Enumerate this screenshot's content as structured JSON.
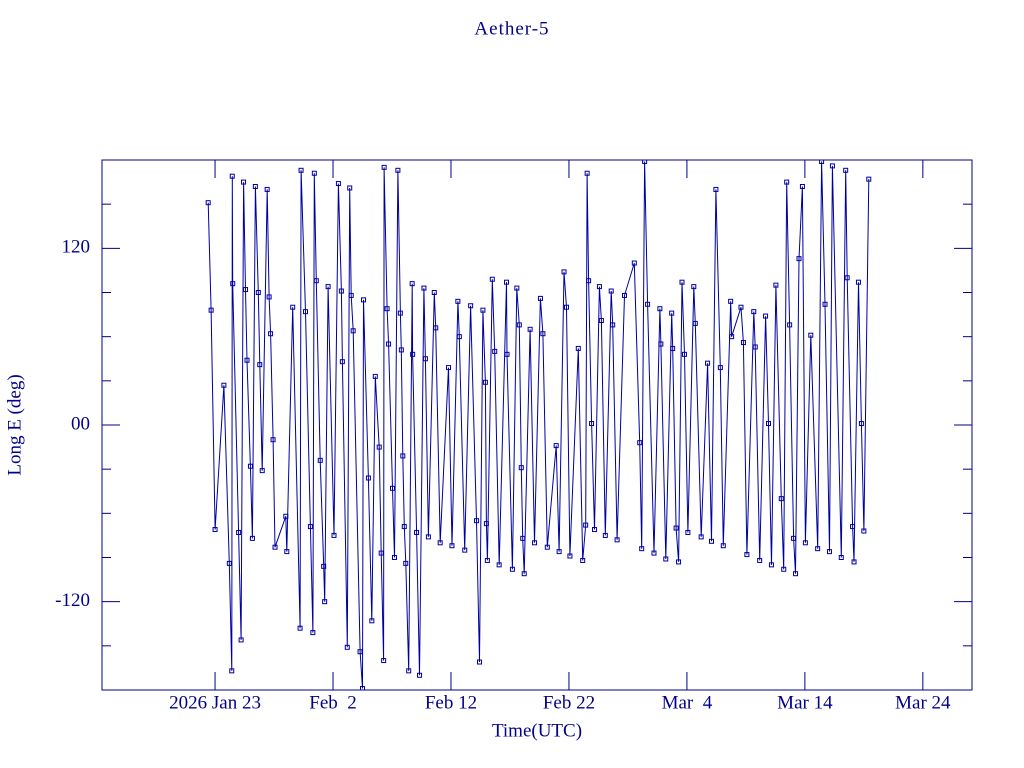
{
  "chart_data": {
    "type": "line",
    "title": "Aether-5",
    "xlabel": "Time(UTC)",
    "ylabel": "Long E (deg)",
    "color": "#0000a0",
    "markers": true,
    "grid": false,
    "xlim": [
      "2026-01-13T10:00",
      "2026-03-28T04:00"
    ],
    "xticks": [
      {
        "value": "2026-01-23T00:00",
        "label": "2026 Jan 23"
      },
      {
        "value": "2026-02-02T00:00",
        "label": "Feb  2"
      },
      {
        "value": "2026-02-12T00:00",
        "label": "Feb 12"
      },
      {
        "value": "2026-02-22T00:00",
        "label": "Feb 22"
      },
      {
        "value": "2026-03-04T00:00",
        "label": "Mar  4"
      },
      {
        "value": "2026-03-14T00:00",
        "label": "Mar 14"
      },
      {
        "value": "2026-03-24T00:00",
        "label": "Mar 24"
      }
    ],
    "ylim": [
      -180,
      180
    ],
    "yticks": [
      -120,
      {
        "value": 0,
        "label": "00"
      },
      120
    ],
    "yminorticks": [
      -150,
      -90,
      -60,
      -30,
      30,
      60,
      90,
      150
    ],
    "x": [
      "2026-01-22T10:00",
      "2026-01-22T16:00",
      "2026-01-23T00:00",
      "2026-01-23T18:00",
      "2026-01-24T05:00",
      "2026-01-24T10:00",
      "2026-01-24T11:00",
      "2026-01-24T12:00",
      "2026-01-25T00:00",
      "2026-01-25T05:00",
      "2026-01-25T10:00",
      "2026-01-25T14:00",
      "2026-01-25T17:00",
      "2026-01-26T00:00",
      "2026-01-26T04:00",
      "2026-01-26T10:00",
      "2026-01-26T16:00",
      "2026-01-26T19:00",
      "2026-01-27T00:00",
      "2026-01-27T10:00",
      "2026-01-27T14:00",
      "2026-01-27T17:00",
      "2026-01-27T22:00",
      "2026-01-28T02:00",
      "2026-01-29T00:00",
      "2026-01-29T02:00",
      "2026-01-29T14:00",
      "2026-01-30T05:00",
      "2026-01-30T07:00",
      "2026-01-30T16:00",
      "2026-01-31T02:00",
      "2026-01-31T07:00",
      "2026-01-31T10:00",
      "2026-01-31T14:00",
      "2026-01-31T22:00",
      "2026-02-01T05:00",
      "2026-02-01T07:00",
      "2026-02-01T14:00",
      "2026-02-02T02:00",
      "2026-02-02T11:00",
      "2026-02-02T17:00",
      "2026-02-02T19:00",
      "2026-02-03T05:00",
      "2026-02-03T10:00",
      "2026-02-03T13:00",
      "2026-02-03T17:00",
      "2026-02-04T07:00",
      "2026-02-04T12:00",
      "2026-02-04T14:00",
      "2026-02-05T00:00",
      "2026-02-05T07:00",
      "2026-02-05T14:00",
      "2026-02-05T22:00",
      "2026-02-06T02:00",
      "2026-02-06T07:00",
      "2026-02-06T08:00",
      "2026-02-06T14:00",
      "2026-02-06T17:00",
      "2026-02-07T01:00",
      "2026-02-07T05:00",
      "2026-02-07T12:00",
      "2026-02-07T17:00",
      "2026-02-07T19:00",
      "2026-02-07T22:00",
      "2026-02-08T01:00",
      "2026-02-08T04:00",
      "2026-02-08T10:00",
      "2026-02-08T17:00",
      "2026-02-08T18:00",
      "2026-02-09T02:00",
      "2026-02-09T08:00",
      "2026-02-09T17:00",
      "2026-02-09T20:00",
      "2026-02-10T02:00",
      "2026-02-10T14:00",
      "2026-02-10T17:00",
      "2026-02-11T02:00",
      "2026-02-11T19:00",
      "2026-02-12T02:00",
      "2026-02-12T14:00",
      "2026-02-12T17:00",
      "2026-02-13T04:00",
      "2026-02-13T16:00",
      "2026-02-14T04:00",
      "2026-02-14T10:00",
      "2026-02-14T17:00",
      "2026-02-14T22:00",
      "2026-02-15T00:00",
      "2026-02-15T02:00",
      "2026-02-15T12:00",
      "2026-02-15T17:00",
      "2026-02-16T02:00",
      "2026-02-16T17:00",
      "2026-02-16T18:00",
      "2026-02-17T05:00",
      "2026-02-17T14:00",
      "2026-02-17T19:00",
      "2026-02-17T23:00",
      "2026-02-18T02:00",
      "2026-02-18T05:00",
      "2026-02-18T17:00",
      "2026-02-19T02:00",
      "2026-02-19T14:00",
      "2026-02-19T19:00",
      "2026-02-20T04:00",
      "2026-02-20T22:00",
      "2026-02-21T04:00",
      "2026-02-21T14:00",
      "2026-02-21T19:00",
      "2026-02-22T02:00",
      "2026-02-22T19:00",
      "2026-02-23T04:00",
      "2026-02-23T10:00",
      "2026-02-23T13:00",
      "2026-02-23T16:00",
      "2026-02-23T22:00",
      "2026-02-24T04:00",
      "2026-02-24T14:00",
      "2026-02-24T18:00",
      "2026-02-25T02:00",
      "2026-02-25T14:00",
      "2026-02-25T17:00",
      "2026-02-26T02:00",
      "2026-02-26T17:00",
      "2026-02-27T13:00",
      "2026-02-28T00:00",
      "2026-02-28T04:00",
      "2026-02-28T10:00",
      "2026-02-28T16:00",
      "2026-03-01T05:00",
      "2026-03-01T17:00",
      "2026-03-01T19:00",
      "2026-03-02T05:00",
      "2026-03-02T17:00",
      "2026-03-02T19:00",
      "2026-03-03T02:00",
      "2026-03-03T07:00",
      "2026-03-03T14:00",
      "2026-03-03T19:00",
      "2026-03-04T02:00",
      "2026-03-04T14:00",
      "2026-03-04T17:00",
      "2026-03-05T05:00",
      "2026-03-05T18:00",
      "2026-03-06T02:00",
      "2026-03-06T11:00",
      "2026-03-06T20:00",
      "2026-03-07T02:00",
      "2026-03-07T17:00",
      "2026-03-07T19:00",
      "2026-03-08T14:00",
      "2026-03-08T19:00",
      "2026-03-09T02:00",
      "2026-03-09T16:00",
      "2026-03-09T19:00",
      "2026-03-10T04:00",
      "2026-03-10T16:00",
      "2026-03-10T22:00",
      "2026-03-11T04:00",
      "2026-03-11T13:00",
      "2026-03-12T00:00",
      "2026-03-12T05:00",
      "2026-03-12T11:00",
      "2026-03-12T17:00",
      "2026-03-13T01:00",
      "2026-03-13T05:00",
      "2026-03-13T12:00",
      "2026-03-13T19:00",
      "2026-03-14T01:00",
      "2026-03-14T12:00",
      "2026-03-15T02:00",
      "2026-03-15T10:00",
      "2026-03-15T17:00",
      "2026-03-16T02:00",
      "2026-03-16T08:00",
      "2026-03-17T02:00",
      "2026-03-17T11:00",
      "2026-03-17T14:00",
      "2026-03-18T01:00",
      "2026-03-18T04:00",
      "2026-03-18T13:00",
      "2026-03-18T19:00",
      "2026-03-19T00:00",
      "2026-03-19T10:00"
    ],
    "values": [
      151,
      78,
      -71,
      27,
      -94,
      -167,
      169,
      96,
      -73,
      -146,
      165,
      92,
      44,
      -28,
      -77,
      162,
      90,
      41,
      -31,
      160,
      87,
      62,
      -10,
      -83,
      -62,
      -86,
      80,
      -138,
      173,
      77,
      -69,
      -141,
      171,
      98,
      -24,
      -96,
      -120,
      94,
      -75,
      164,
      91,
      43,
      -151,
      161,
      88,
      64,
      -154,
      -179,
      85,
      -36,
      -133,
      33,
      -15,
      -87,
      -160,
      175,
      79,
      55,
      -43,
      -90,
      173,
      76,
      51,
      -21,
      -69,
      -94,
      -167,
      96,
      48,
      -73,
      -170,
      93,
      45,
      -76,
      90,
      66,
      -80,
      39,
      -82,
      84,
      60,
      -85,
      81,
      -65,
      -161,
      78,
      29,
      -67,
      -92,
      99,
      50,
      -95,
      97,
      48,
      -98,
      93,
      68,
      -29,
      -77,
      -101,
      65,
      -80,
      86,
      62,
      -83,
      -14,
      -86,
      104,
      80,
      -89,
      52,
      -92,
      -68,
      171,
      98,
      1,
      -71,
      94,
      71,
      -75,
      91,
      68,
      -78,
      88,
      110,
      -12,
      -84,
      179,
      82,
      -87,
      79,
      55,
      -91,
      76,
      52,
      -70,
      -93,
      97,
      48,
      -73,
      94,
      69,
      -76,
      42,
      -79,
      160,
      39,
      -82,
      84,
      60,
      80,
      56,
      -88,
      77,
      53,
      -92,
      74,
      1,
      -95,
      95,
      -50,
      -98,
      165,
      68,
      -77,
      -101,
      113,
      162,
      -80,
      61,
      -84,
      179,
      82,
      -86,
      176,
      -90,
      173,
      100,
      -69,
      -93,
      97,
      1,
      -72,
      167
    ]
  }
}
